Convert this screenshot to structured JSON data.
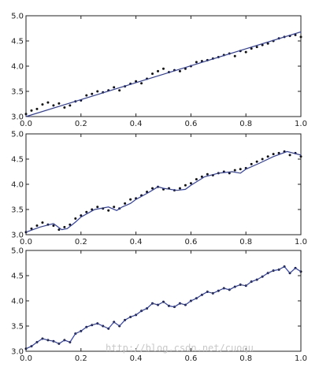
{
  "watermark": "http://blog.csdn.net/cuoqu",
  "colors": {
    "line": "#2f3fb0",
    "points": "#111111",
    "frame": "#222222"
  },
  "chart_data": [
    {
      "type": "scatter",
      "xlim": [
        0.0,
        1.0
      ],
      "ylim": [
        3.0,
        5.0
      ],
      "xticks": [
        0.0,
        0.2,
        0.4,
        0.6,
        0.8,
        1.0
      ],
      "xtick_labels": [
        "0.0",
        "0.2",
        "0.4",
        "0.6",
        "0.8",
        "1.0"
      ],
      "yticks": [
        3.0,
        3.5,
        4.0,
        4.5,
        5.0
      ],
      "ytick_labels": [
        "3.0",
        "3.5",
        "4.0",
        "4.5",
        "5.0"
      ],
      "grid": false,
      "x": [
        0.0,
        0.02,
        0.04,
        0.06,
        0.08,
        0.1,
        0.12,
        0.14,
        0.16,
        0.18,
        0.2,
        0.22,
        0.24,
        0.26,
        0.28,
        0.3,
        0.32,
        0.34,
        0.36,
        0.38,
        0.4,
        0.42,
        0.44,
        0.46,
        0.48,
        0.5,
        0.52,
        0.54,
        0.56,
        0.58,
        0.6,
        0.62,
        0.64,
        0.66,
        0.68,
        0.7,
        0.72,
        0.74,
        0.76,
        0.78,
        0.8,
        0.82,
        0.84,
        0.86,
        0.88,
        0.9,
        0.92,
        0.94,
        0.96,
        0.98,
        1.0
      ],
      "y": [
        3.05,
        3.12,
        3.15,
        3.24,
        3.28,
        3.22,
        3.26,
        3.18,
        3.22,
        3.3,
        3.32,
        3.42,
        3.45,
        3.5,
        3.48,
        3.52,
        3.58,
        3.52,
        3.6,
        3.65,
        3.7,
        3.66,
        3.75,
        3.85,
        3.9,
        3.95,
        3.88,
        3.92,
        3.9,
        3.95,
        4.0,
        4.08,
        4.1,
        4.12,
        4.15,
        4.18,
        4.22,
        4.25,
        4.2,
        4.3,
        4.28,
        4.35,
        4.38,
        4.42,
        4.45,
        4.5,
        4.55,
        4.58,
        4.6,
        4.62,
        4.58
      ],
      "fit": {
        "x": [
          0.0,
          1.0
        ],
        "y": [
          3.0,
          4.68
        ]
      }
    },
    {
      "type": "scatter",
      "xlim": [
        0.0,
        1.0
      ],
      "ylim": [
        3.0,
        5.0
      ],
      "xticks": [
        0.0,
        0.2,
        0.4,
        0.6,
        0.8,
        1.0
      ],
      "xtick_labels": [
        "0.0",
        "0.2",
        "0.4",
        "0.6",
        "0.8",
        "1.0"
      ],
      "yticks": [
        3.0,
        3.5,
        4.0,
        4.5,
        5.0
      ],
      "ytick_labels": [
        "3.0",
        "3.5",
        "4.0",
        "4.5",
        "5.0"
      ],
      "grid": false,
      "x": [
        0.0,
        0.02,
        0.04,
        0.06,
        0.08,
        0.1,
        0.12,
        0.14,
        0.16,
        0.18,
        0.2,
        0.22,
        0.24,
        0.26,
        0.28,
        0.3,
        0.32,
        0.34,
        0.36,
        0.38,
        0.4,
        0.42,
        0.44,
        0.46,
        0.48,
        0.5,
        0.52,
        0.54,
        0.56,
        0.58,
        0.6,
        0.62,
        0.64,
        0.66,
        0.68,
        0.7,
        0.72,
        0.74,
        0.76,
        0.78,
        0.8,
        0.82,
        0.84,
        0.86,
        0.88,
        0.9,
        0.92,
        0.94,
        0.96,
        0.98,
        1.0
      ],
      "y": [
        3.05,
        3.12,
        3.18,
        3.24,
        3.2,
        3.18,
        3.1,
        3.15,
        3.2,
        3.32,
        3.38,
        3.45,
        3.5,
        3.55,
        3.52,
        3.48,
        3.55,
        3.52,
        3.62,
        3.7,
        3.72,
        3.78,
        3.85,
        3.92,
        3.95,
        3.9,
        3.92,
        3.88,
        3.92,
        3.98,
        4.02,
        4.1,
        4.15,
        4.2,
        4.18,
        4.22,
        4.25,
        4.22,
        4.28,
        4.3,
        4.32,
        4.4,
        4.45,
        4.5,
        4.55,
        4.6,
        4.62,
        4.65,
        4.58,
        4.62,
        4.55
      ],
      "fit": {
        "x": [
          0.0,
          0.05,
          0.1,
          0.13,
          0.15,
          0.18,
          0.2,
          0.25,
          0.3,
          0.33,
          0.35,
          0.38,
          0.4,
          0.45,
          0.48,
          0.5,
          0.55,
          0.58,
          0.6,
          0.65,
          0.7,
          0.75,
          0.78,
          0.8,
          0.85,
          0.9,
          0.95,
          1.0
        ],
        "y": [
          3.05,
          3.15,
          3.22,
          3.1,
          3.12,
          3.25,
          3.35,
          3.5,
          3.55,
          3.48,
          3.55,
          3.62,
          3.7,
          3.85,
          3.95,
          3.92,
          3.88,
          3.9,
          3.98,
          4.15,
          4.22,
          4.25,
          4.22,
          4.3,
          4.42,
          4.55,
          4.65,
          4.58
        ]
      }
    },
    {
      "type": "scatter",
      "xlim": [
        0.0,
        1.0
      ],
      "ylim": [
        3.0,
        5.0
      ],
      "xticks": [
        0.0,
        0.2,
        0.4,
        0.6,
        0.8,
        1.0
      ],
      "xtick_labels": [
        "0.0",
        "0.2",
        "0.4",
        "0.6",
        "0.8",
        "1.0"
      ],
      "yticks": [
        3.0,
        3.5,
        4.0,
        4.5,
        5.0
      ],
      "ytick_labels": [
        "3.0",
        "3.5",
        "4.0",
        "4.5",
        "5.0"
      ],
      "grid": false,
      "x": [
        0.0,
        0.02,
        0.04,
        0.06,
        0.08,
        0.1,
        0.12,
        0.14,
        0.16,
        0.18,
        0.2,
        0.22,
        0.24,
        0.26,
        0.28,
        0.3,
        0.32,
        0.34,
        0.36,
        0.38,
        0.4,
        0.42,
        0.44,
        0.46,
        0.48,
        0.5,
        0.52,
        0.54,
        0.56,
        0.58,
        0.6,
        0.62,
        0.64,
        0.66,
        0.68,
        0.7,
        0.72,
        0.74,
        0.76,
        0.78,
        0.8,
        0.82,
        0.84,
        0.86,
        0.88,
        0.9,
        0.92,
        0.94,
        0.96,
        0.98,
        1.0
      ],
      "y": [
        3.05,
        3.1,
        3.18,
        3.25,
        3.22,
        3.2,
        3.15,
        3.22,
        3.18,
        3.35,
        3.4,
        3.48,
        3.52,
        3.55,
        3.5,
        3.45,
        3.58,
        3.5,
        3.62,
        3.68,
        3.72,
        3.8,
        3.85,
        3.95,
        3.92,
        3.98,
        3.9,
        3.88,
        3.95,
        3.92,
        4.0,
        4.05,
        4.12,
        4.18,
        4.15,
        4.2,
        4.25,
        4.22,
        4.28,
        4.32,
        4.3,
        4.38,
        4.42,
        4.48,
        4.55,
        4.6,
        4.62,
        4.68,
        4.55,
        4.65,
        4.58
      ],
      "fit": {
        "x": [
          0.0,
          0.02,
          0.04,
          0.06,
          0.08,
          0.1,
          0.12,
          0.14,
          0.16,
          0.18,
          0.2,
          0.22,
          0.24,
          0.26,
          0.28,
          0.3,
          0.32,
          0.34,
          0.36,
          0.38,
          0.4,
          0.42,
          0.44,
          0.46,
          0.48,
          0.5,
          0.52,
          0.54,
          0.56,
          0.58,
          0.6,
          0.62,
          0.64,
          0.66,
          0.68,
          0.7,
          0.72,
          0.74,
          0.76,
          0.78,
          0.8,
          0.82,
          0.84,
          0.86,
          0.88,
          0.9,
          0.92,
          0.94,
          0.96,
          0.98,
          1.0
        ],
        "y": [
          3.05,
          3.1,
          3.18,
          3.25,
          3.22,
          3.2,
          3.15,
          3.22,
          3.18,
          3.35,
          3.4,
          3.48,
          3.52,
          3.55,
          3.5,
          3.45,
          3.58,
          3.5,
          3.62,
          3.68,
          3.72,
          3.8,
          3.85,
          3.95,
          3.92,
          3.98,
          3.9,
          3.88,
          3.95,
          3.92,
          4.0,
          4.05,
          4.12,
          4.18,
          4.15,
          4.2,
          4.25,
          4.22,
          4.28,
          4.32,
          4.3,
          4.38,
          4.42,
          4.48,
          4.55,
          4.6,
          4.62,
          4.68,
          4.55,
          4.65,
          4.58
        ]
      }
    }
  ]
}
